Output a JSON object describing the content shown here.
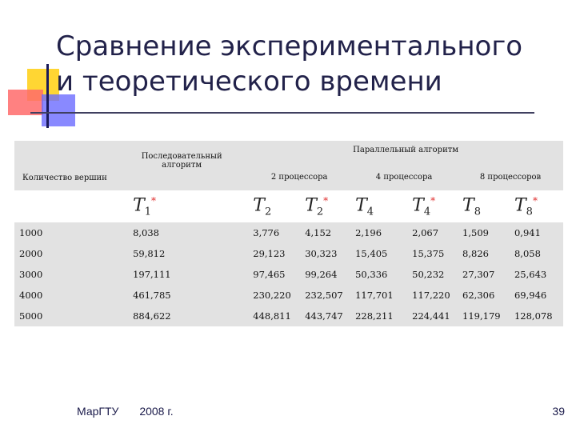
{
  "slide": {
    "title_line1": "Сравнение экспериментального",
    "title_line2": "и теоретического времени"
  },
  "table": {
    "header": {
      "vertices": "Количество вершин",
      "sequential": "Последовательный алгоритм",
      "parallel": "Параллельный алгоритм",
      "p2": "2 процессора",
      "p4": "4 процессора",
      "p8": "8 процессоров"
    },
    "symbols": [
      {
        "base": "T",
        "sub": "1",
        "sup": "*"
      },
      {
        "base": "T",
        "sub": "2",
        "sup": ""
      },
      {
        "base": "T",
        "sub": "2",
        "sup": "*"
      },
      {
        "base": "T",
        "sub": "4",
        "sup": ""
      },
      {
        "base": "T",
        "sub": "4",
        "sup": "*"
      },
      {
        "base": "T",
        "sub": "8",
        "sup": ""
      },
      {
        "base": "T",
        "sub": "8",
        "sup": "*"
      }
    ],
    "rows": [
      [
        "1000",
        "8,038",
        "3,776",
        "4,152",
        "2,196",
        "2,067",
        "1,509",
        "0,941"
      ],
      [
        "2000",
        "59,812",
        "29,123",
        "30,323",
        "15,405",
        "15,375",
        "8,826",
        "8,058"
      ],
      [
        "3000",
        "197,111",
        "97,465",
        "99,264",
        "50,336",
        "50,232",
        "27,307",
        "25,643"
      ],
      [
        "4000",
        "461,785",
        "230,220",
        "232,507",
        "117,701",
        "117,220",
        "62,306",
        "69,946"
      ],
      [
        "5000",
        "884,622",
        "448,811",
        "443,747",
        "228,211",
        "224,441",
        "119,179",
        "128,078"
      ]
    ]
  },
  "footer": {
    "org": "МарГТУ",
    "year": "2008 г.",
    "page": "39"
  },
  "colors": {
    "title": "#22224a",
    "table_bg": "#e2e2e2",
    "star": "#e03030"
  }
}
